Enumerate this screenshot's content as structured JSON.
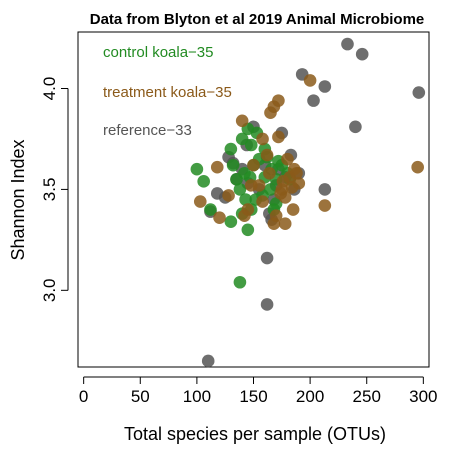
{
  "chart_data": {
    "type": "scatter",
    "title": "Data from Blyton et al 2019 Animal Microbiome",
    "xlabel": "Total species per sample (OTUs)",
    "ylabel": "Shannon Index",
    "xlim": [
      -5,
      305
    ],
    "ylim": [
      2.62,
      4.28
    ],
    "x_ticks": [
      0,
      50,
      100,
      150,
      200,
      250,
      300
    ],
    "y_ticks": [
      3.0,
      3.5,
      4.0
    ],
    "y_tick_labels": [
      "3.0",
      "3.5",
      "4.0"
    ],
    "legend_position": "top-left",
    "colors": {
      "control": "#228B22",
      "treatment": "#8B5A1A",
      "reference": "#555555"
    },
    "series": [
      {
        "name": "control koala−35",
        "color_key": "control",
        "points": [
          [
            100,
            3.6
          ],
          [
            106,
            3.54
          ],
          [
            138,
            3.04
          ],
          [
            112,
            3.4
          ],
          [
            130,
            3.34
          ],
          [
            145,
            3.3
          ],
          [
            130,
            3.7
          ],
          [
            140,
            3.75
          ],
          [
            145,
            3.8
          ],
          [
            148,
            3.72
          ],
          [
            153,
            3.78
          ],
          [
            155,
            3.65
          ],
          [
            150,
            3.62
          ],
          [
            142,
            3.58
          ],
          [
            135,
            3.55
          ],
          [
            160,
            3.56
          ],
          [
            165,
            3.5
          ],
          [
            158,
            3.47
          ],
          [
            170,
            3.43
          ],
          [
            152,
            3.45
          ],
          [
            148,
            3.4
          ],
          [
            168,
            3.4
          ],
          [
            175,
            3.62
          ],
          [
            180,
            3.58
          ],
          [
            182,
            3.55
          ],
          [
            172,
            3.64
          ],
          [
            166,
            3.6
          ],
          [
            143,
            3.45
          ],
          [
            138,
            3.5
          ],
          [
            132,
            3.62
          ],
          [
            160,
            3.7
          ],
          [
            162,
            3.66
          ],
          [
            170,
            3.55
          ],
          [
            147,
            3.56
          ],
          [
            140,
            3.38
          ]
        ]
      },
      {
        "name": "treatment koala−35",
        "color_key": "treatment",
        "points": [
          [
            103,
            3.44
          ],
          [
            118,
            3.61
          ],
          [
            120,
            3.36
          ],
          [
            128,
            3.47
          ],
          [
            140,
            3.84
          ],
          [
            145,
            3.4
          ],
          [
            150,
            3.62
          ],
          [
            155,
            3.52
          ],
          [
            158,
            3.75
          ],
          [
            162,
            3.67
          ],
          [
            165,
            3.88
          ],
          [
            168,
            3.91
          ],
          [
            172,
            3.94
          ],
          [
            168,
            3.33
          ],
          [
            170,
            3.37
          ],
          [
            175,
            3.5
          ],
          [
            178,
            3.46
          ],
          [
            182,
            3.56
          ],
          [
            186,
            3.6
          ],
          [
            190,
            3.53
          ],
          [
            180,
            3.65
          ],
          [
            172,
            3.76
          ],
          [
            178,
            3.33
          ],
          [
            185,
            3.4
          ],
          [
            200,
            4.04
          ],
          [
            213,
            3.42
          ],
          [
            295,
            3.61
          ],
          [
            142,
            3.37
          ],
          [
            148,
            3.52
          ],
          [
            164,
            3.58
          ],
          [
            176,
            3.54
          ],
          [
            184,
            3.51
          ],
          [
            158,
            3.44
          ],
          [
            188,
            3.58
          ],
          [
            174,
            3.48
          ]
        ]
      },
      {
        "name": "reference−33",
        "color_key": "reference",
        "points": [
          [
            110,
            2.65
          ],
          [
            112,
            3.39
          ],
          [
            118,
            3.48
          ],
          [
            125,
            3.46
          ],
          [
            128,
            3.66
          ],
          [
            132,
            3.63
          ],
          [
            135,
            3.55
          ],
          [
            140,
            3.6
          ],
          [
            144,
            3.72
          ],
          [
            150,
            3.81
          ],
          [
            160,
            3.62
          ],
          [
            162,
            2.93
          ],
          [
            162,
            3.16
          ],
          [
            164,
            3.38
          ],
          [
            166,
            3.35
          ],
          [
            170,
            3.52
          ],
          [
            175,
            3.78
          ],
          [
            178,
            3.56
          ],
          [
            183,
            3.67
          ],
          [
            186,
            3.5
          ],
          [
            193,
            4.07
          ],
          [
            203,
            3.94
          ],
          [
            213,
            4.01
          ],
          [
            213,
            3.5
          ],
          [
            233,
            4.22
          ],
          [
            240,
            3.81
          ],
          [
            246,
            4.17
          ],
          [
            296,
            3.98
          ],
          [
            155,
            3.5
          ],
          [
            168,
            3.45
          ],
          [
            145,
            3.53
          ],
          [
            172,
            3.6
          ],
          [
            190,
            3.58
          ]
        ]
      }
    ]
  }
}
